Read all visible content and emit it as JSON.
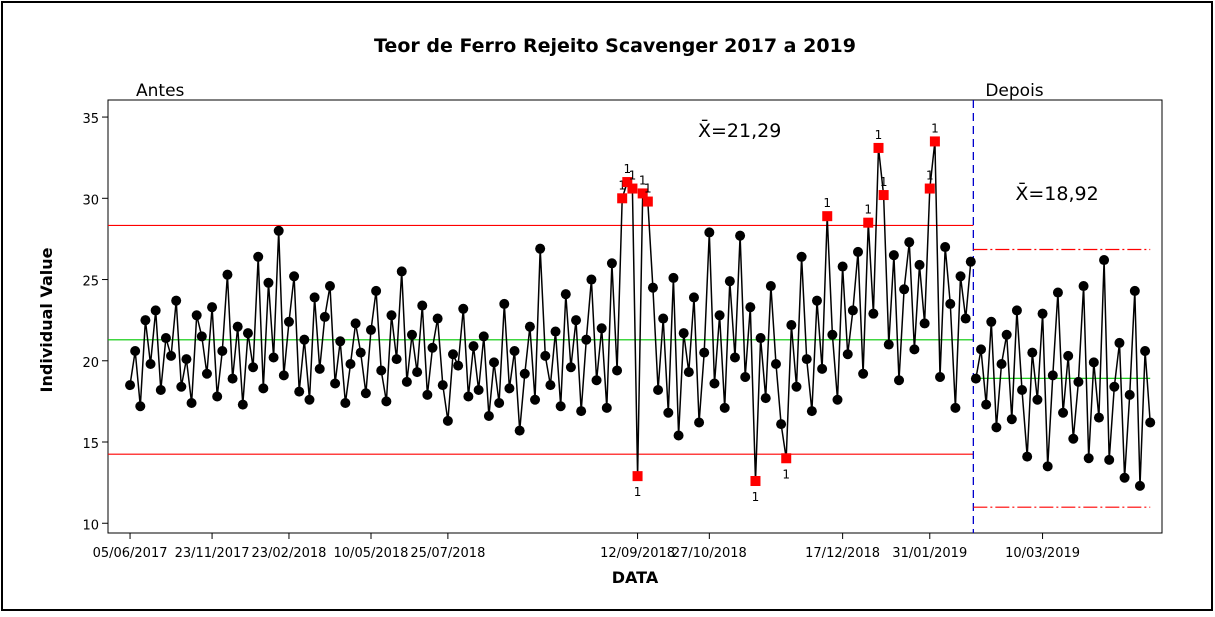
{
  "chart_data": {
    "type": "control",
    "title": "Teor de Ferro Rejeito Scavenger 2017 a 2019",
    "xlabel": "DATA",
    "ylabel": "Individual Value",
    "ylim": [
      9.4,
      36.05
    ],
    "yticks": [
      10,
      15,
      20,
      25,
      30,
      35
    ],
    "xlim": [
      -4.3,
      201.3
    ],
    "xticks": [
      {
        "value": 0,
        "label": "05/06/2017"
      },
      {
        "value": 16,
        "label": "23/11/2017"
      },
      {
        "value": 31,
        "label": "23/02/2018"
      },
      {
        "value": 47,
        "label": "10/05/2018"
      },
      {
        "value": 62,
        "label": "25/07/2018"
      },
      {
        "value": 99,
        "label": "12/09/2018"
      },
      {
        "value": 113,
        "label": "27/10/2018"
      },
      {
        "value": 139,
        "label": "17/12/2018"
      },
      {
        "value": 156,
        "label": "31/01/2019"
      },
      {
        "value": 178,
        "label": "10/03/2019"
      }
    ],
    "color": "#000000",
    "flag_color": "#ff0000",
    "flag_label": "1",
    "center_color": "#00c800",
    "limit_color": "#ff0000",
    "divider_color": "#0000cc",
    "series": [
      {
        "name": "Antes",
        "center": {
          "value": 21.29,
          "label": "X̄=21,29"
        },
        "ucl": 28.33,
        "lcl": 14.25,
        "values": [
          18.5,
          20.6,
          17.2,
          22.5,
          19.8,
          23.1,
          18.2,
          21.4,
          20.3,
          23.7,
          18.4,
          20.1,
          17.4,
          22.8,
          21.5,
          19.2,
          23.3,
          17.8,
          20.6,
          25.3,
          18.9,
          22.1,
          17.3,
          21.7,
          19.6,
          26.4,
          18.3,
          24.8,
          20.2,
          28.0,
          19.1,
          22.4,
          25.2,
          18.1,
          21.3,
          17.6,
          23.9,
          19.5,
          22.7,
          24.6,
          18.6,
          21.2,
          17.4,
          19.8,
          22.3,
          20.5,
          18.0,
          21.9,
          24.3,
          19.4,
          17.5,
          22.8,
          20.1,
          25.5,
          18.7,
          21.6,
          19.3,
          23.4,
          17.9,
          20.8,
          22.6,
          18.5,
          16.3,
          20.4,
          19.7,
          23.2,
          17.8,
          20.9,
          18.2,
          21.5,
          16.6,
          19.9,
          17.4,
          23.5,
          18.3,
          20.6,
          15.7,
          19.2,
          22.1,
          17.6,
          26.9,
          20.3,
          18.5,
          21.8,
          17.2,
          24.1,
          19.6,
          22.5,
          16.9,
          21.3,
          25.0,
          18.8,
          22.0,
          17.1,
          26.0,
          19.4,
          30.0,
          31.0,
          30.6,
          12.9,
          30.3,
          29.8,
          24.5,
          18.2,
          22.6,
          16.8,
          25.1,
          15.4,
          21.7,
          19.3,
          23.9,
          16.2,
          20.5,
          27.9,
          18.6,
          22.8,
          17.1,
          24.9,
          20.2,
          27.7,
          19.0,
          23.3,
          12.6,
          21.4,
          17.7,
          24.6,
          19.8,
          16.1,
          14.0,
          22.2,
          18.4,
          26.4,
          20.1,
          16.9,
          23.7,
          19.5,
          28.9,
          21.6,
          17.6,
          25.8,
          20.4,
          23.1,
          26.7,
          19.2,
          28.5,
          22.9,
          33.1,
          30.2,
          21.0,
          26.5,
          18.8,
          24.4,
          27.3,
          20.7,
          25.9,
          22.3,
          30.6,
          33.5,
          19.0,
          27.0,
          23.5,
          17.1,
          25.2,
          22.6,
          26.1
        ]
      },
      {
        "name": "Depois",
        "center": {
          "value": 18.92,
          "label": "X̄=18,92"
        },
        "ucl": 26.85,
        "lcl": 10.99,
        "values": [
          18.9,
          20.7,
          17.3,
          22.4,
          15.9,
          19.8,
          21.6,
          16.4,
          23.1,
          18.2,
          14.1,
          20.5,
          17.6,
          22.9,
          13.5,
          19.1,
          24.2,
          16.8,
          20.3,
          15.2,
          18.7,
          24.6,
          14.0,
          19.9,
          16.5,
          26.2,
          13.9,
          18.4,
          21.1,
          12.8,
          17.9,
          24.3,
          12.3,
          20.6,
          16.2
        ]
      }
    ]
  }
}
